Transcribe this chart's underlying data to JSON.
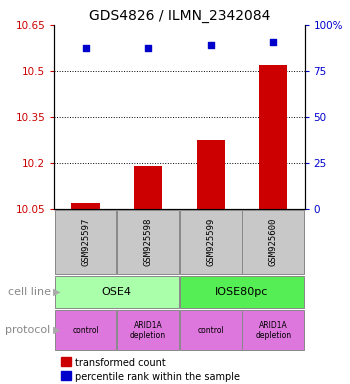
{
  "title": "GDS4826 / ILMN_2342084",
  "samples": [
    "GSM925597",
    "GSM925598",
    "GSM925599",
    "GSM925600"
  ],
  "bar_values": [
    10.07,
    10.19,
    10.275,
    10.52
  ],
  "scatter_values": [
    10.575,
    10.575,
    10.585,
    10.595
  ],
  "ylim": [
    10.05,
    10.65
  ],
  "yticks": [
    10.05,
    10.2,
    10.35,
    10.5,
    10.65
  ],
  "ytick_labels": [
    "10.05",
    "10.2",
    "10.35",
    "10.5",
    "10.65"
  ],
  "y2ticks": [
    0,
    25,
    50,
    75,
    100
  ],
  "y2tick_labels": [
    "0",
    "25",
    "50",
    "75",
    "100%"
  ],
  "bar_color": "#cc0000",
  "scatter_color": "#0000cc",
  "bar_bottom": 10.05,
  "cell_line_labels": [
    "OSE4",
    "IOSE80pc"
  ],
  "cell_line_colors": [
    "#aaffaa",
    "#55ee55"
  ],
  "cell_line_spans": [
    [
      0,
      2
    ],
    [
      2,
      4
    ]
  ],
  "protocol_labels": [
    "control",
    "ARID1A\ndepletion",
    "control",
    "ARID1A\ndepletion"
  ],
  "protocol_color": "#dd77dd",
  "sample_box_color": "#c8c8c8",
  "legend_bar_label": "transformed count",
  "legend_scatter_label": "percentile rank within the sample",
  "cell_line_row_label": "cell line",
  "protocol_row_label": "protocol",
  "title_fontsize": 10,
  "axis_fontsize": 7.5,
  "label_fontsize": 8
}
